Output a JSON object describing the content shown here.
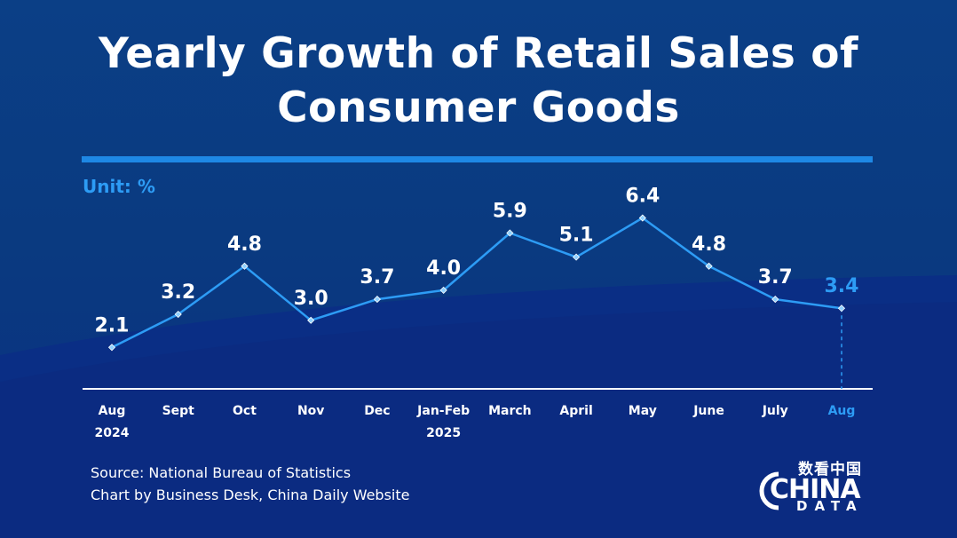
{
  "title_line1": "Yearly Growth of Retail Sales of",
  "title_line2": "Consumer Goods",
  "unit_label": "Unit: %",
  "source_line1": "Source: National Bureau of Statistics",
  "source_line2": "Chart by Business Desk, China Daily Website",
  "logo": {
    "cn": "数看中国",
    "main": "CHINA",
    "sub": "DATA"
  },
  "colors": {
    "line": "#2d9cf5",
    "highlight": "#2d9cf5",
    "text": "#ffffff"
  },
  "chart_data": {
    "type": "line",
    "x_labels": [
      [
        "Aug",
        "2024"
      ],
      [
        "Sept"
      ],
      [
        "Oct"
      ],
      [
        "Nov"
      ],
      [
        "Dec"
      ],
      [
        "Jan-Feb",
        "2025"
      ],
      [
        "March"
      ],
      [
        "April"
      ],
      [
        "May"
      ],
      [
        "June"
      ],
      [
        "July"
      ],
      [
        "Aug"
      ]
    ],
    "values": [
      2.1,
      3.2,
      4.8,
      3.0,
      3.7,
      4.0,
      5.9,
      5.1,
      6.4,
      4.8,
      3.7,
      3.4
    ],
    "value_labels": [
      "2.1",
      "3.2",
      "4.8",
      "3.0",
      "3.7",
      "4.0",
      "5.9",
      "5.1",
      "6.4",
      "4.8",
      "3.7",
      "3.4"
    ],
    "highlight_index": 11,
    "ylabel": "Unit: %"
  }
}
